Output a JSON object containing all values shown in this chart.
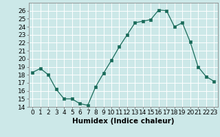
{
  "xlabel": "Humidex (Indice chaleur)",
  "x": [
    0,
    1,
    2,
    3,
    4,
    5,
    6,
    7,
    8,
    9,
    10,
    11,
    12,
    13,
    14,
    15,
    16,
    17,
    18,
    19,
    20,
    21,
    22,
    23
  ],
  "y": [
    18.3,
    18.8,
    18.0,
    16.2,
    15.0,
    15.0,
    14.4,
    14.2,
    16.5,
    18.2,
    19.8,
    21.5,
    23.0,
    24.5,
    24.7,
    24.9,
    26.1,
    26.0,
    24.0,
    24.5,
    22.1,
    19.0,
    17.8,
    17.2
  ],
  "line_color": "#1a6b5a",
  "marker": "s",
  "marker_size": 2.5,
  "bg_color": "#cce8e8",
  "grid_color": "#b0d8d8",
  "ylim": [
    14,
    27
  ],
  "yticks": [
    14,
    15,
    16,
    17,
    18,
    19,
    20,
    21,
    22,
    23,
    24,
    25,
    26
  ],
  "tick_fontsize": 6.5,
  "label_fontsize": 7.5,
  "figsize": [
    3.2,
    2.0
  ],
  "dpi": 100
}
